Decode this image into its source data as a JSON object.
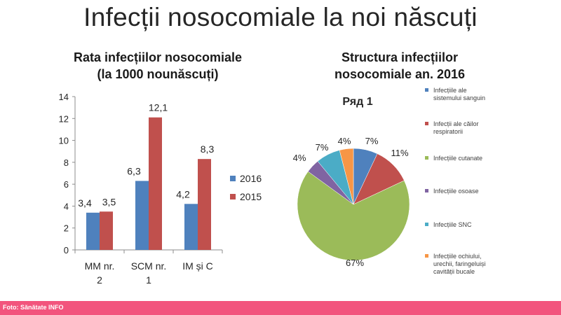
{
  "page_title": "Infecții nosocomiale la noi născuți",
  "footer_credit": "Foto: Sănătate INFO",
  "chart_data": [
    {
      "type": "bar",
      "title": "Rata infecțiilor nosocomiale",
      "subtitle": "(la 1000 nounăscuți)",
      "categories": [
        [
          "MM nr.",
          "2"
        ],
        [
          "SCM nr.",
          "1"
        ],
        [
          "IM și C",
          ""
        ]
      ],
      "series": [
        {
          "name": "2016",
          "values": [
            3.4,
            6.3,
            4.2
          ],
          "labels": [
            "3,4",
            "6,3",
            "4,2"
          ],
          "color": "#4f81bd"
        },
        {
          "name": "2015",
          "values": [
            3.5,
            12.1,
            8.3
          ],
          "labels": [
            "3,5",
            "12,1",
            "8,3"
          ],
          "color": "#c0504d"
        }
      ],
      "ylim": [
        0,
        14
      ],
      "yticks": [
        0,
        2,
        4,
        6,
        8,
        10,
        12,
        14
      ],
      "grid": false,
      "legend": "right"
    },
    {
      "type": "pie",
      "title": "Structura infecțiilor",
      "subtitle": "nosocomiale an. 2016",
      "series_name": "Ряд 1",
      "slices": [
        {
          "label": "Infecțiile ale sistemului sanguin",
          "legend_lines": [
            "Infecțiile ale",
            "sistemului sanguin"
          ],
          "value": 7,
          "pct_label": "7%",
          "color": "#4f81bd"
        },
        {
          "label": "Infecții ale căilor respiratorii",
          "legend_lines": [
            "Infecții ale căilor",
            "respiratorii"
          ],
          "value": 11,
          "pct_label": "11%",
          "color": "#c0504d"
        },
        {
          "label": "Infecțiile cutanate",
          "legend_lines": [
            "Infecțiile cutanate"
          ],
          "value": 67,
          "pct_label": "67%",
          "color": "#9bbb59"
        },
        {
          "label": "Infecțiile osoase",
          "legend_lines": [
            "Infecțiile osoase"
          ],
          "value": 4,
          "pct_label": "4%",
          "color": "#8064a2"
        },
        {
          "label": "Infecțiile SNC",
          "legend_lines": [
            "Infecțiile SNC"
          ],
          "value": 7,
          "pct_label": "7%",
          "color": "#4bacc6"
        },
        {
          "label": "Infecțiile ochiului, urechii, faringelui și cavității bucale",
          "legend_lines": [
            "Infecțiile ochiului,",
            "urechii, faringeluiși",
            "cavității bucale"
          ],
          "value": 4,
          "pct_label": "4%",
          "color": "#f79646"
        }
      ],
      "legend": "right"
    }
  ]
}
